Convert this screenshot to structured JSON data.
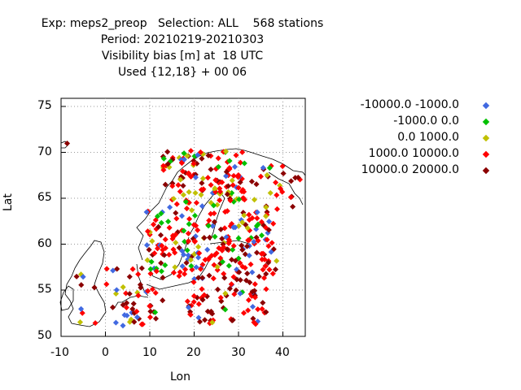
{
  "header": {
    "line1": "Exp: meps2_preop   Selection: ALL    568 stations",
    "line2": "Period: 20210219-20210303",
    "line3": "Visibility bias [m] at  18 UTC",
    "line4": "Used {12,18} + 00 06"
  },
  "axes": {
    "xlabel": "Lon",
    "ylabel": "Lat",
    "xlim": [
      -10,
      45
    ],
    "ylim": [
      50,
      75
    ],
    "xticks": [
      "-10",
      "0",
      "10",
      "20",
      "30",
      "40"
    ],
    "yticks": [
      "50",
      "55",
      "60",
      "65",
      "70",
      "75"
    ],
    "grid": true
  },
  "legend": [
    {
      "label": "-10000.0 -1000.0",
      "color": "#4169e1"
    },
    {
      "label": "-1000.0 0.0",
      "color": "#00c000"
    },
    {
      "label": "0.0 1000.0",
      "color": "#c0c000"
    },
    {
      "label": "1000.0 10000.0",
      "color": "#ff0000"
    },
    {
      "label": "10000.0 20000.0",
      "color": "#8b0000"
    }
  ]
}
